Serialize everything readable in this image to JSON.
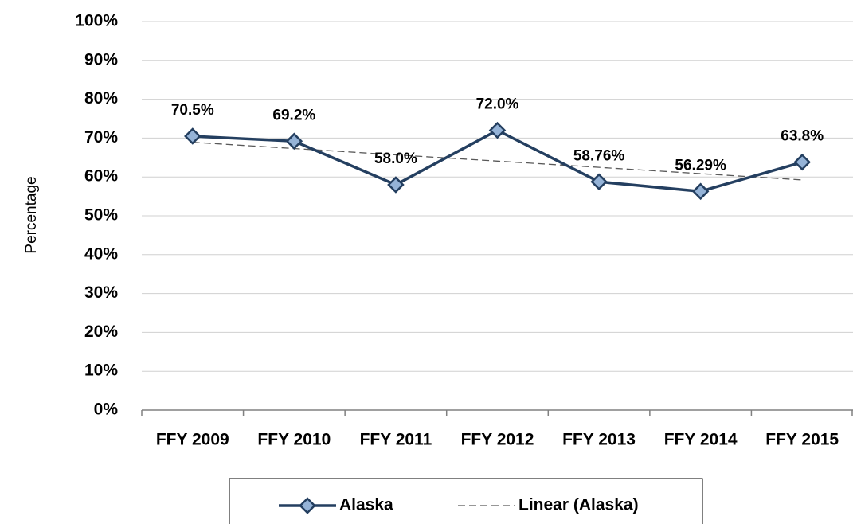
{
  "chart_data": {
    "type": "line",
    "y_label": "Percentage",
    "categories": [
      "FFY 2009",
      "FFY 2010",
      "FFY 2011",
      "FFY 2012",
      "FFY 2013",
      "FFY 2014",
      "FFY 2015"
    ],
    "series": [
      {
        "name": "Alaska",
        "color": "#243f60",
        "marker_color": "#95b3d7",
        "dashed": false,
        "values": [
          70.5,
          69.2,
          58.0,
          72.0,
          58.76,
          56.29,
          63.8
        ],
        "value_labels": [
          "70.5%",
          "69.2%",
          "58.0%",
          "72.0%",
          "58.76%",
          "56.29%",
          "63.8%"
        ]
      },
      {
        "name": "Linear (Alaska)",
        "color": "#595959",
        "dashed": true,
        "values": [
          68.92,
          67.31,
          65.69,
          64.08,
          62.47,
          60.85,
          59.24
        ]
      }
    ],
    "ylim": [
      0,
      100
    ],
    "yticks": [
      {
        "value": 0,
        "label": "0%"
      },
      {
        "value": 10,
        "label": "10%"
      },
      {
        "value": 20,
        "label": "20%"
      },
      {
        "value": 30,
        "label": "30%"
      },
      {
        "value": 40,
        "label": "40%"
      },
      {
        "value": 50,
        "label": "50%"
      },
      {
        "value": 60,
        "label": "60%"
      },
      {
        "value": 70,
        "label": "70%"
      },
      {
        "value": 80,
        "label": "80%"
      },
      {
        "value": 90,
        "label": "90%"
      },
      {
        "value": 100,
        "label": "100%"
      }
    ],
    "grid": true,
    "legend": "bottom"
  }
}
